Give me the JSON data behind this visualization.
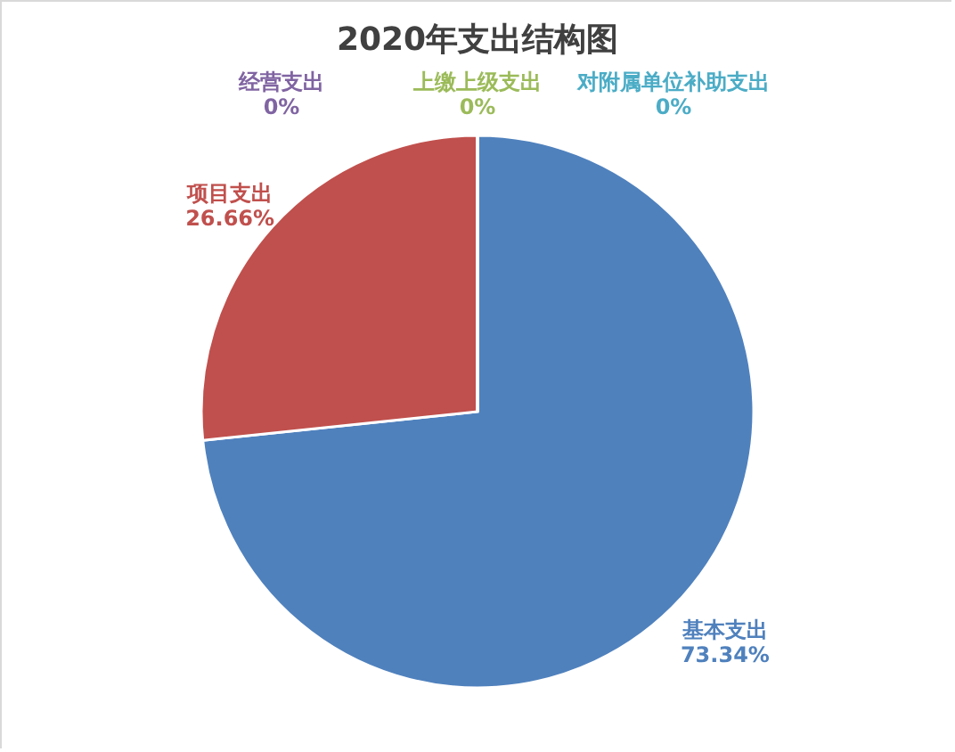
{
  "chart_data": {
    "type": "pie",
    "title": "2020年支出结构图",
    "categories": [
      "基本支出",
      "项目支出",
      "经营支出",
      "上缴上级支出",
      "对附属单位补助支出"
    ],
    "values": [
      73.34,
      26.66,
      0,
      0,
      0
    ],
    "colors": [
      "#4f81bd",
      "#c0504d",
      "#8064a2",
      "#9bbb59",
      "#4bacc6"
    ],
    "value_labels": [
      "73.34%",
      "26.66%",
      "0%",
      "0%",
      "0%"
    ]
  }
}
